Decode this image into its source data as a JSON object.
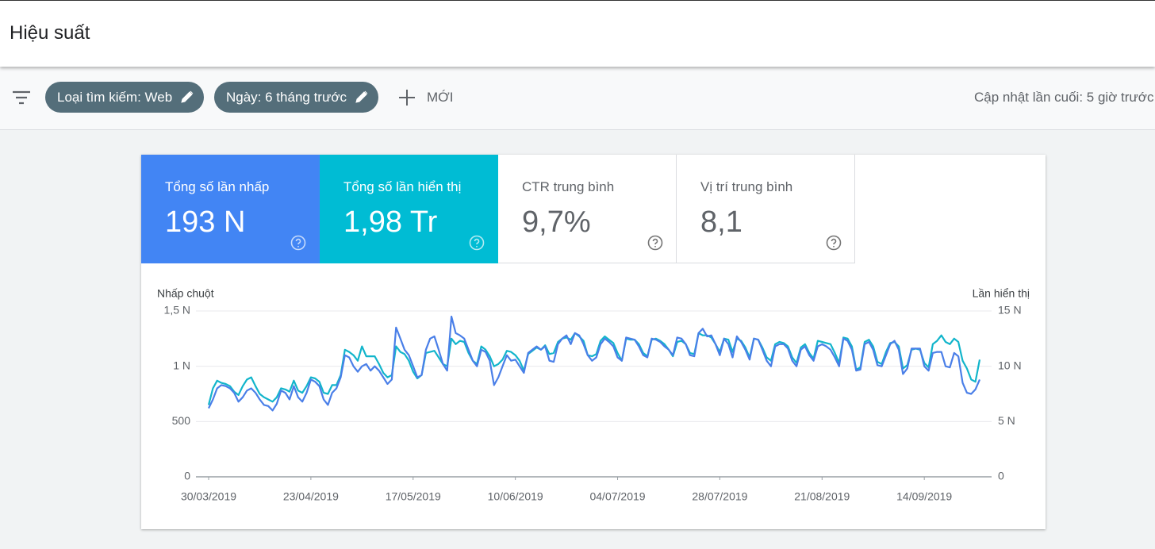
{
  "header": {
    "title": "Hiệu suất"
  },
  "toolbar": {
    "filters": [
      "Loại tìm kiếm: Web",
      "Ngày: 6 tháng trước"
    ],
    "new_button": "MỚI",
    "last_update": "Cập nhật lần cuối: 5 giờ trước"
  },
  "metrics": [
    {
      "label": "Tổng số lần nhấp",
      "value": "193 N"
    },
    {
      "label": "Tổng số lần hiển thị",
      "value": "1,98 Tr"
    },
    {
      "label": "CTR trung bình",
      "value": "9,7%"
    },
    {
      "label": "Vị trí trung bình",
      "value": "8,1"
    }
  ],
  "chart_data": {
    "type": "line",
    "y_label": "Nhấp chuột",
    "y2_label": "Lần hiển thị",
    "ylim": [
      0,
      1500
    ],
    "yticks": [
      0,
      500,
      {
        "value": 1000,
        "label": "1 N"
      },
      {
        "value": 1500,
        "label": "1,5 N"
      }
    ],
    "y2lim": [
      0,
      15000
    ],
    "y2ticks": [
      0,
      {
        "value": 5000,
        "label": "5 N"
      },
      {
        "value": 10000,
        "label": "10 N"
      },
      {
        "value": 15000,
        "label": "15 N"
      }
    ],
    "grid": true,
    "x": [
      "30/03/2019",
      "31/03/2019",
      "01/04/2019",
      "02/04/2019",
      "03/04/2019",
      "04/04/2019",
      "05/04/2019",
      "06/04/2019",
      "07/04/2019",
      "08/04/2019",
      "09/04/2019",
      "10/04/2019",
      "11/04/2019",
      "12/04/2019",
      "13/04/2019",
      "14/04/2019",
      "15/04/2019",
      "16/04/2019",
      "17/04/2019",
      "18/04/2019",
      "19/04/2019",
      "20/04/2019",
      "21/04/2019",
      "22/04/2019",
      "23/04/2019",
      "24/04/2019",
      "25/04/2019",
      "26/04/2019",
      "27/04/2019",
      "28/04/2019",
      "29/04/2019",
      "30/04/2019",
      "01/05/2019",
      "02/05/2019",
      "03/05/2019",
      "04/05/2019",
      "05/05/2019",
      "06/05/2019",
      "07/05/2019",
      "08/05/2019",
      "09/05/2019",
      "10/05/2019",
      "11/05/2019",
      "12/05/2019",
      "13/05/2019",
      "14/05/2019",
      "15/05/2019",
      "16/05/2019",
      "17/05/2019",
      "18/05/2019",
      "19/05/2019",
      "20/05/2019",
      "21/05/2019",
      "22/05/2019",
      "23/05/2019",
      "24/05/2019",
      "25/05/2019",
      "26/05/2019",
      "27/05/2019",
      "28/05/2019",
      "29/05/2019",
      "30/05/2019",
      "31/05/2019",
      "01/06/2019",
      "02/06/2019",
      "03/06/2019",
      "04/06/2019",
      "05/06/2019",
      "06/06/2019",
      "07/06/2019",
      "08/06/2019",
      "09/06/2019",
      "10/06/2019",
      "11/06/2019",
      "12/06/2019",
      "13/06/2019",
      "14/06/2019",
      "15/06/2019",
      "16/06/2019",
      "17/06/2019",
      "18/06/2019",
      "19/06/2019",
      "20/06/2019",
      "21/06/2019",
      "22/06/2019",
      "23/06/2019",
      "24/06/2019",
      "25/06/2019",
      "26/06/2019",
      "27/06/2019",
      "28/06/2019",
      "29/06/2019",
      "30/06/2019",
      "01/07/2019",
      "02/07/2019",
      "03/07/2019",
      "04/07/2019",
      "05/07/2019",
      "06/07/2019",
      "07/07/2019",
      "08/07/2019",
      "09/07/2019",
      "10/07/2019",
      "11/07/2019",
      "12/07/2019",
      "13/07/2019",
      "14/07/2019",
      "15/07/2019",
      "16/07/2019",
      "17/07/2019",
      "18/07/2019",
      "19/07/2019",
      "20/07/2019",
      "21/07/2019",
      "22/07/2019",
      "23/07/2019",
      "24/07/2019",
      "25/07/2019",
      "26/07/2019",
      "27/07/2019",
      "28/07/2019",
      "29/07/2019",
      "30/07/2019",
      "31/07/2019",
      "01/08/2019",
      "02/08/2019",
      "03/08/2019",
      "04/08/2019",
      "05/08/2019",
      "06/08/2019",
      "07/08/2019",
      "08/08/2019",
      "09/08/2019",
      "10/08/2019",
      "11/08/2019",
      "12/08/2019",
      "13/08/2019",
      "14/08/2019",
      "15/08/2019",
      "16/08/2019",
      "17/08/2019",
      "18/08/2019",
      "19/08/2019",
      "20/08/2019",
      "21/08/2019",
      "22/08/2019",
      "23/08/2019",
      "24/08/2019",
      "25/08/2019",
      "26/08/2019",
      "27/08/2019",
      "28/08/2019",
      "29/08/2019",
      "30/08/2019",
      "31/08/2019",
      "01/09/2019",
      "02/09/2019",
      "03/09/2019",
      "04/09/2019",
      "05/09/2019",
      "06/09/2019",
      "07/09/2019",
      "08/09/2019",
      "09/09/2019",
      "10/09/2019",
      "11/09/2019",
      "12/09/2019",
      "13/09/2019",
      "14/09/2019",
      "15/09/2019",
      "16/09/2019",
      "17/09/2019",
      "18/09/2019",
      "19/09/2019",
      "20/09/2019",
      "21/09/2019",
      "22/09/2019",
      "23/09/2019",
      "24/09/2019",
      "25/09/2019",
      "26/09/2019",
      "27/09/2019"
    ],
    "series": [
      {
        "name": "Nhấp chuột",
        "color": "#4a7fe8",
        "values": [
          620,
          700,
          800,
          830,
          820,
          800,
          760,
          680,
          720,
          780,
          800,
          760,
          700,
          650,
          640,
          600,
          660,
          780,
          760,
          700,
          820,
          720,
          680,
          760,
          880,
          860,
          820,
          700,
          650,
          760,
          800,
          900,
          1100,
          1080,
          1000,
          950,
          1000,
          1020,
          960,
          1000,
          960,
          900,
          840,
          880,
          1350,
          1250,
          1150,
          1100,
          1000,
          900,
          920,
          1150,
          1250,
          1270,
          1150,
          1020,
          960,
          1450,
          1300,
          1280,
          1250,
          1150,
          1050,
          1000,
          1150,
          1130,
          1050,
          830,
          900,
          1000,
          1100,
          1050,
          1060,
          1000,
          940,
          1120,
          1150,
          1180,
          1150,
          1180,
          1050,
          1040,
          1200,
          1250,
          1280,
          1200,
          1300,
          1280,
          1200,
          1100,
          1050,
          1080,
          1200,
          1250,
          1220,
          1180,
          1080,
          1050,
          1260,
          1250,
          1240,
          1180,
          1100,
          1080,
          1250,
          1240,
          1220,
          1180,
          1150,
          1100,
          1260,
          1250,
          1200,
          1100,
          1090,
          1300,
          1340,
          1270,
          1280,
          1200,
          1100,
          1250,
          1200,
          1080,
          1270,
          1220,
          1150,
          1060,
          1250,
          1240,
          1150,
          1050,
          1000,
          1180,
          1200,
          1200,
          1160,
          1050,
          1000,
          1150,
          1180,
          1100,
          1050,
          1180,
          1200,
          1180,
          1150,
          1080,
          1000,
          1250,
          1230,
          1150,
          960,
          970,
          1200,
          1220,
          1150,
          1010,
          1000,
          1100,
          1200,
          1230,
          1150,
          930,
          980,
          1160,
          1160,
          1160,
          1000,
          960,
          1120,
          1130,
          1130,
          1000,
          990,
          1120,
          1090,
          850,
          760,
          750,
          790,
          880
        ]
      },
      {
        "name": "Lần hiển thị",
        "color": "#12b5cb",
        "axis": "y2",
        "values": [
          6500,
          8000,
          8700,
          8500,
          8400,
          8200,
          7700,
          7400,
          8200,
          8800,
          9000,
          8200,
          7500,
          7200,
          7000,
          6800,
          7200,
          8000,
          7900,
          7700,
          8700,
          7800,
          7600,
          8200,
          9000,
          8900,
          8600,
          7600,
          7500,
          8300,
          8300,
          9200,
          11500,
          11300,
          11000,
          10500,
          11800,
          10900,
          10900,
          10900,
          10200,
          9400,
          9000,
          9200,
          11800,
          11300,
          11100,
          10500,
          9500,
          8900,
          9200,
          11200,
          11300,
          11400,
          10800,
          10200,
          10000,
          12500,
          12000,
          12300,
          12200,
          11200,
          10500,
          10200,
          11800,
          11500,
          10900,
          10000,
          10200,
          10600,
          11400,
          11300,
          11000,
          10500,
          9600,
          11100,
          11400,
          11700,
          11500,
          11900,
          11100,
          11200,
          12200,
          12500,
          12600,
          12400,
          13000,
          12700,
          12300,
          11000,
          10900,
          11100,
          12300,
          12700,
          12400,
          12100,
          11200,
          10500,
          12500,
          12400,
          12400,
          12000,
          11200,
          10900,
          12400,
          12500,
          12300,
          12000,
          11500,
          10900,
          12200,
          12300,
          12000,
          11200,
          11100,
          13000,
          12800,
          12800,
          12600,
          12000,
          11300,
          12500,
          12400,
          11300,
          12500,
          12300,
          11700,
          10800,
          12500,
          12400,
          11700,
          10800,
          10500,
          12000,
          12200,
          12100,
          11800,
          10800,
          10300,
          11700,
          12000,
          11200,
          10700,
          12300,
          12200,
          12100,
          12000,
          11200,
          10300,
          12600,
          12500,
          11800,
          9700,
          9900,
          12200,
          12400,
          11800,
          10400,
          10200,
          11300,
          12100,
          12200,
          11800,
          9800,
          10100,
          11500,
          11600,
          11500,
          10300,
          9900,
          12000,
          12300,
          12800,
          12200,
          12000,
          12500,
          12200,
          10500,
          9800,
          8800,
          8600,
          10600
        ]
      }
    ]
  }
}
